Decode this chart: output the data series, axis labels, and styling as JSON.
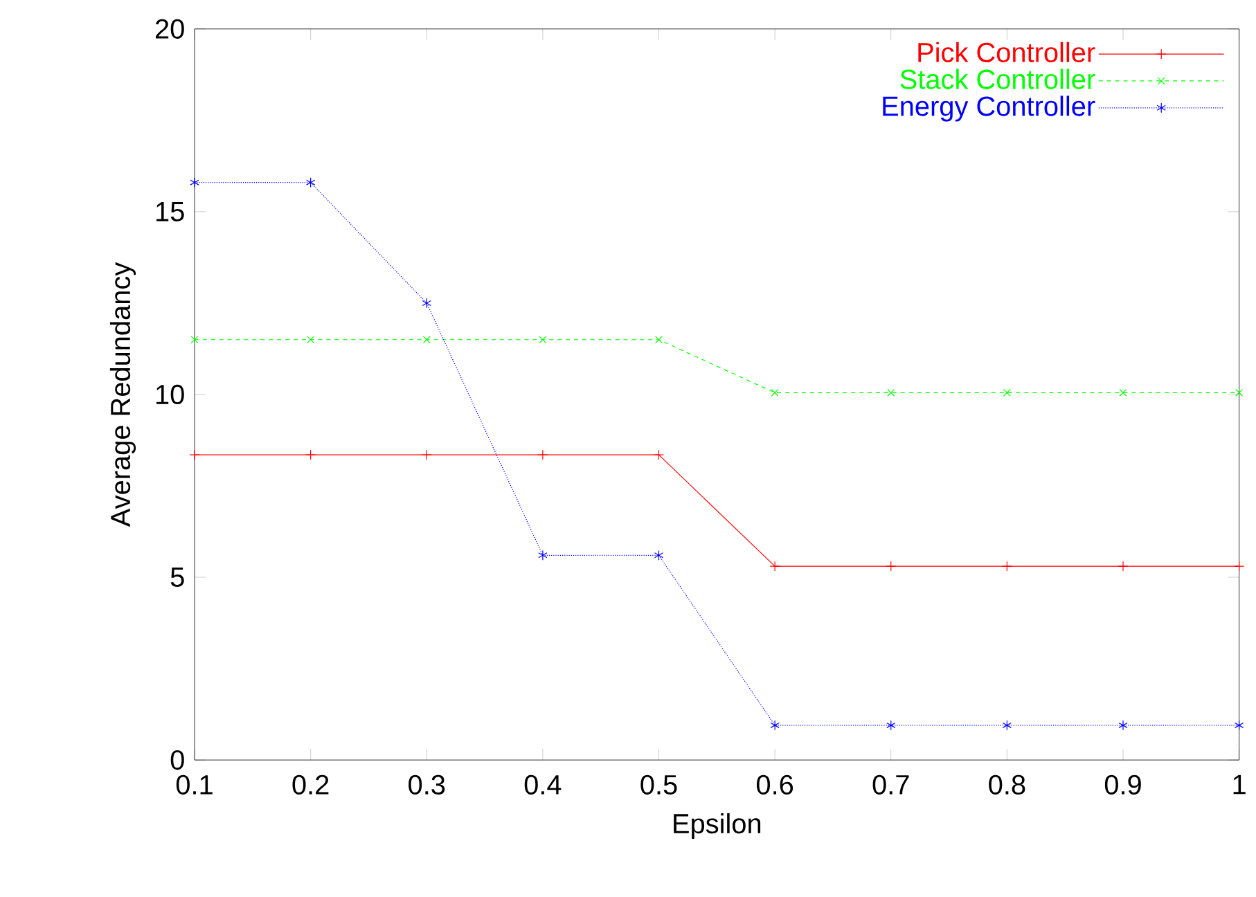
{
  "chart_data": {
    "type": "line",
    "xlabel": "Epsilon",
    "ylabel": "Average Redundancy",
    "x": [
      0.1,
      0.2,
      0.3,
      0.4,
      0.5,
      0.6,
      0.7,
      0.8,
      0.9,
      1
    ],
    "series": [
      {
        "name": "Pick Controller",
        "color": "#ff0000",
        "marker": "cross",
        "line_style": "solid",
        "values": [
          8.35,
          8.35,
          8.35,
          8.35,
          8.35,
          5.3,
          5.3,
          5.3,
          5.3,
          5.3
        ]
      },
      {
        "name": "Stack Controller",
        "color": "#00ff00",
        "marker": "cross",
        "line_style": "dashed",
        "values": [
          11.5,
          11.5,
          11.5,
          11.5,
          11.5,
          10.05,
          10.05,
          10.05,
          10.05,
          10.05
        ]
      },
      {
        "name": "Energy Controller",
        "color": "#0000ff",
        "marker": "cross",
        "line_style": "dotted",
        "values": [
          15.8,
          15.8,
          12.5,
          5.6,
          5.6,
          0.95,
          0.95,
          0.95,
          0.95,
          0.95
        ]
      }
    ],
    "xlim": [
      0.1,
      1
    ],
    "ylim": [
      0,
      20
    ],
    "xticks": [
      0.1,
      0.2,
      0.3,
      0.4,
      0.5,
      0.6,
      0.7,
      0.8,
      0.9,
      1
    ],
    "yticks": [
      0,
      5,
      10,
      15,
      20
    ],
    "grid": false,
    "legend": "top right"
  }
}
